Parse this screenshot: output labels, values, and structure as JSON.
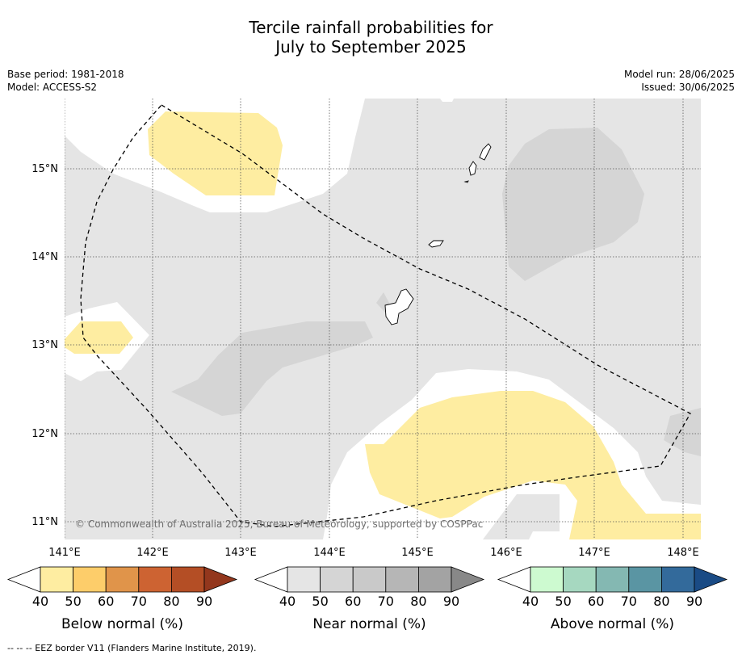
{
  "title_line1": "Tercile rainfall probabilities for",
  "title_line2": "July to September 2025",
  "meta": {
    "base_period": "Base period: 1981-2018",
    "model": "Model: ACCESS-S2",
    "model_run": "Model run: 28/06/2025",
    "issued": "Issued: 30/06/2025"
  },
  "map": {
    "lat_labels": [
      "15°N",
      "14°N",
      "13°N",
      "12°N",
      "11°N"
    ],
    "lon_labels": [
      "141°E",
      "142°E",
      "143°E",
      "144°E",
      "145°E",
      "146°E",
      "147°E",
      "148°E"
    ],
    "copyright": "© Commonwealth of Australia 2025, Bureau of Meteorology, supported by COSPPac"
  },
  "colorbars": [
    {
      "title": "Below normal (%)",
      "ticks": [
        "40",
        "50",
        "60",
        "70",
        "80",
        "90"
      ],
      "colors": [
        "#ffffff",
        "#feeda1",
        "#fdcd6a",
        "#e0944a",
        "#cd6332",
        "#b44e25",
        "#93371d"
      ]
    },
    {
      "title": "Near normal (%)",
      "ticks": [
        "40",
        "50",
        "60",
        "70",
        "80",
        "90"
      ],
      "colors": [
        "#ffffff",
        "#e5e5e5",
        "#d5d5d5",
        "#c9c9c9",
        "#b6b6b6",
        "#a3a3a3",
        "#888888"
      ]
    },
    {
      "title": "Above normal (%)",
      "ticks": [
        "40",
        "50",
        "60",
        "70",
        "80",
        "90"
      ],
      "colors": [
        "#ffffff",
        "#cdfad0",
        "#a6d8c0",
        "#84b8b2",
        "#5a95a3",
        "#336a9b",
        "#1a4b85"
      ]
    }
  ],
  "footnote": "--  --  -- EEZ border V11 (Flanders Marine Institute, 2019)."
}
